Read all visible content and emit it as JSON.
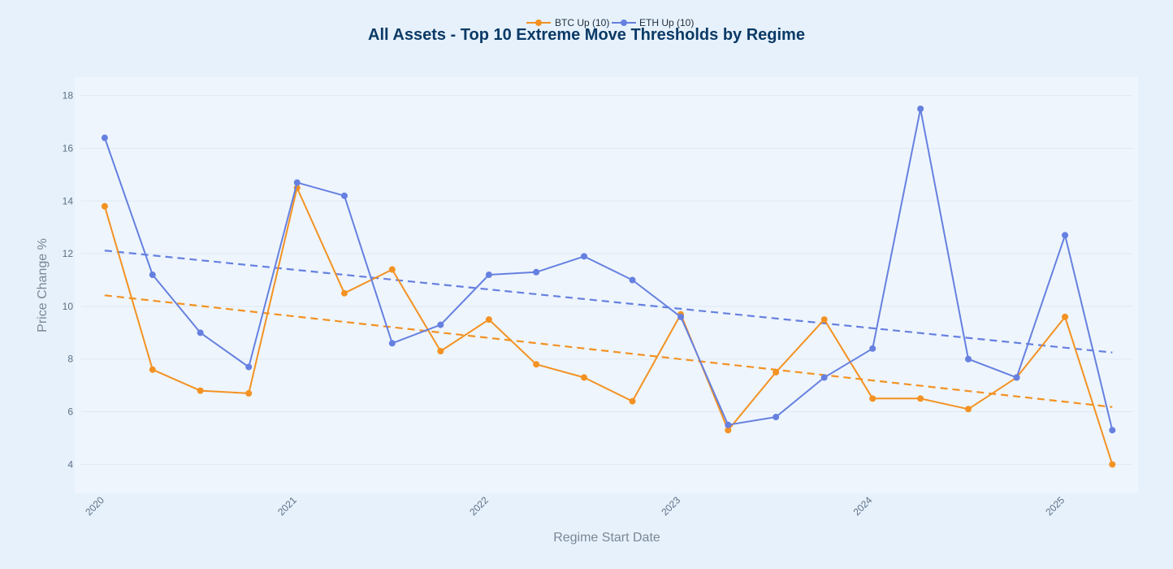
{
  "chart_data": {
    "type": "line",
    "title": "All Assets - Top 10 Extreme Move Thresholds by Regime",
    "xlabel": "Regime Start Date",
    "ylabel": "Price Change %",
    "x_tick_labels": [
      "2020",
      "2021",
      "2022",
      "2023",
      "2024",
      "2025"
    ],
    "y_ticks": [
      4,
      6,
      8,
      10,
      12,
      14,
      16,
      18
    ],
    "ylim": [
      2.9,
      18.7
    ],
    "xlim": [
      "2019-11-05",
      "2025-05-20"
    ],
    "grid": "horizontal",
    "legend_position": "top",
    "x": [
      "2020-01-01",
      "2020-04-01",
      "2020-07-01",
      "2020-10-01",
      "2021-01-01",
      "2021-04-01",
      "2021-07-01",
      "2021-10-01",
      "2022-01-01",
      "2022-04-01",
      "2022-07-01",
      "2022-10-01",
      "2023-01-01",
      "2023-04-01",
      "2023-07-01",
      "2023-10-01",
      "2024-01-01",
      "2024-04-01",
      "2024-07-01",
      "2024-10-01",
      "2025-01-01",
      "2025-04-01"
    ],
    "series": [
      {
        "name": "BTC Up (10)",
        "color": "#f39222",
        "values": [
          13.8,
          7.6,
          6.8,
          6.7,
          14.5,
          10.5,
          11.4,
          8.3,
          9.5,
          7.8,
          7.3,
          6.4,
          9.7,
          5.3,
          7.5,
          9.5,
          6.5,
          6.5,
          6.1,
          7.3,
          9.6,
          4.0
        ],
        "trend": [
          10.42,
          6.18
        ]
      },
      {
        "name": "ETH Up (10)",
        "color": "#6680e0",
        "values": [
          16.4,
          11.2,
          9.0,
          7.7,
          14.7,
          14.2,
          8.6,
          9.3,
          11.2,
          11.3,
          11.9,
          11.0,
          9.6,
          5.5,
          5.8,
          7.3,
          8.4,
          17.5,
          8.0,
          7.3,
          12.7,
          5.3
        ],
        "trend": [
          12.12,
          8.25
        ]
      }
    ]
  }
}
